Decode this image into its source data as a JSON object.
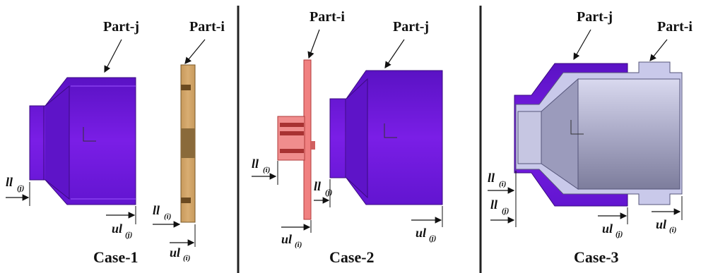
{
  "panels": [
    {
      "caption": "Case-1",
      "parts": [
        "Part-j",
        "Part-i"
      ],
      "dims": [
        {
          "main": "ll",
          "sub": "(j)"
        },
        {
          "main": "ul",
          "sub": "(j)"
        },
        {
          "main": "ll",
          "sub": "(i)"
        },
        {
          "main": "ul",
          "sub": "(i)"
        }
      ]
    },
    {
      "caption": "Case-2",
      "parts": [
        "Part-i",
        "Part-j"
      ],
      "dims": [
        {
          "main": "ll",
          "sub": "(i)"
        },
        {
          "main": "ll",
          "sub": "(j)"
        },
        {
          "main": "ul",
          "sub": "(i)"
        },
        {
          "main": "ul",
          "sub": "(j)"
        }
      ]
    },
    {
      "caption": "Case-3",
      "parts": [
        "Part-j",
        "Part-i"
      ],
      "dims": [
        {
          "main": "ll",
          "sub": "(i)"
        },
        {
          "main": "ll",
          "sub": "(j)"
        },
        {
          "main": "ul",
          "sub": "(j)"
        },
        {
          "main": "ul",
          "sub": "(i)"
        }
      ]
    }
  ],
  "colors": {
    "part_j": "#7a1ee6",
    "part_j_dark": "#4a0fa0",
    "part_i_case1": "#d8ad72",
    "part_i_case2": "#f08080",
    "part_i_case3": "#c9c9ea"
  }
}
